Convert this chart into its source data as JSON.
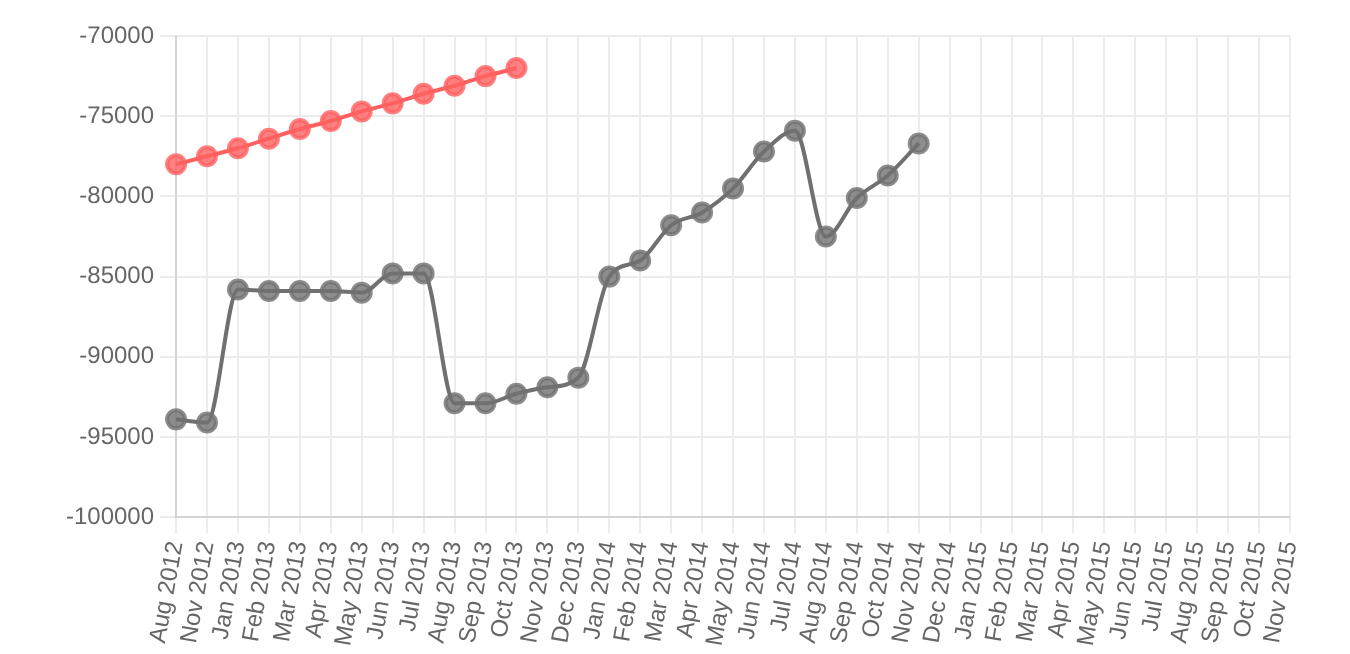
{
  "chart_data": {
    "type": "line",
    "categories": [
      "Aug 2012",
      "Nov 2012",
      "Jan 2013",
      "Feb 2013",
      "Mar 2013",
      "Apr 2013",
      "May 2013",
      "Jun 2013",
      "Jul 2013",
      "Aug 2013",
      "Sep 2013",
      "Oct 2013",
      "Nov 2013",
      "Dec 2013",
      "Jan 2014",
      "Feb 2014",
      "Mar 2014",
      "Apr 2014",
      "May 2014",
      "Jun 2014",
      "Jul 2014",
      "Aug 2014",
      "Sep 2014",
      "Oct 2014",
      "Nov 2014",
      "Dec 2014",
      "Jan 2015",
      "Feb 2015",
      "Mar 2015",
      "Apr 2015",
      "May 2015",
      "Jun 2015",
      "Jul 2015",
      "Aug 2015",
      "Sep 2015",
      "Oct 2015",
      "Nov 2015"
    ],
    "series": [
      {
        "color": "#ff6060",
        "values": [
          -78000,
          -77500,
          -77000,
          -76400,
          -75800,
          -75300,
          -74700,
          -74200,
          -73600,
          -73100,
          -72500,
          -72000,
          null,
          null,
          null,
          null,
          null,
          null,
          null,
          null,
          null,
          null,
          null,
          null,
          null,
          null,
          null,
          null,
          null,
          null,
          null,
          null,
          null,
          null,
          null,
          null,
          null
        ]
      },
      {
        "color": "#707070",
        "values": [
          -93900,
          -94100,
          -85800,
          -85900,
          -85900,
          -85900,
          -86000,
          -84800,
          -84800,
          -92900,
          -92900,
          -92300,
          -91900,
          -91300,
          -85000,
          -84000,
          -81800,
          -81000,
          -79500,
          -77200,
          -75900,
          -82500,
          -80100,
          -78700,
          -76700,
          null,
          null,
          null,
          null,
          null,
          null,
          null,
          null,
          null,
          null,
          null,
          null
        ]
      }
    ],
    "ylim": [
      -100000,
      -70000
    ],
    "yticks": [
      -100000,
      -95000,
      -90000,
      -85000,
      -80000,
      -75000,
      -70000
    ],
    "grid": true,
    "legend": false,
    "marker": "circle",
    "line_style": "solid"
  }
}
